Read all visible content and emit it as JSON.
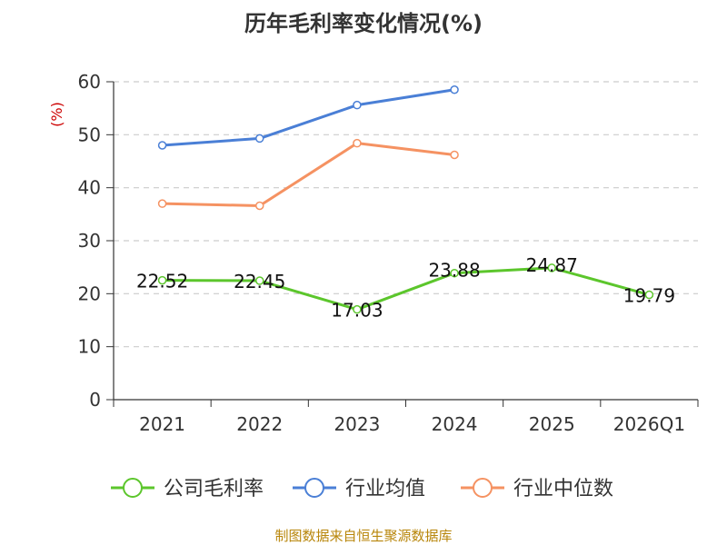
{
  "chart_data": {
    "type": "line",
    "title": "历年毛利率变化情况(%)",
    "ylabel": "(%)",
    "categories": [
      "2021",
      "2022",
      "2023",
      "2024",
      "2025",
      "2026Q1"
    ],
    "ylim": [
      0,
      60
    ],
    "yticks": [
      0,
      10,
      20,
      30,
      40,
      50,
      60
    ],
    "grid": true,
    "legend_position": "bottom",
    "series": [
      {
        "name": "公司毛利率",
        "color": "#5cc62c",
        "values": [
          22.52,
          22.45,
          17.03,
          23.88,
          24.87,
          19.79
        ],
        "labels": [
          "22.52",
          "22.45",
          "17.03",
          "23.88",
          "24.87",
          "19.79"
        ]
      },
      {
        "name": "行业均值",
        "color": "#4a7fd6",
        "values": [
          48.0,
          49.3,
          55.6,
          58.5,
          null,
          null
        ]
      },
      {
        "name": "行业中位数",
        "color": "#f59262",
        "values": [
          37.0,
          36.6,
          48.4,
          46.2,
          null,
          null
        ]
      }
    ]
  },
  "footer": {
    "source": "制图数据来自恒生聚源数据库"
  }
}
